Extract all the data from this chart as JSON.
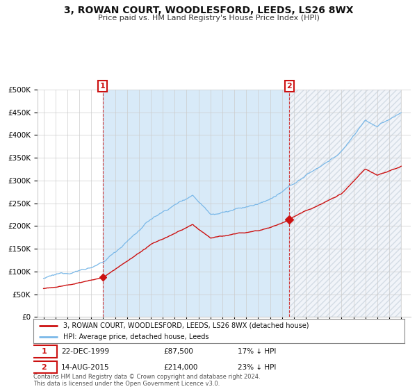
{
  "title": "3, ROWAN COURT, WOODLESFORD, LEEDS, LS26 8WX",
  "subtitle": "Price paid vs. HM Land Registry's House Price Index (HPI)",
  "ylim": [
    0,
    500000
  ],
  "yticks": [
    0,
    50000,
    100000,
    150000,
    200000,
    250000,
    300000,
    350000,
    400000,
    450000,
    500000
  ],
  "ytick_labels": [
    "£0",
    "£50K",
    "£100K",
    "£150K",
    "£200K",
    "£250K",
    "£300K",
    "£350K",
    "£400K",
    "£450K",
    "£500K"
  ],
  "hpi_color": "#7ab8e8",
  "hpi_fill_color": "#d8eaf8",
  "price_color": "#cc1111",
  "sale1_year": 1999.97,
  "sale1_price": 87500,
  "sale1_label": "1",
  "sale2_year": 2015.62,
  "sale2_price": 214000,
  "sale2_label": "2",
  "xmin": 1995,
  "xmax": 2025,
  "legend_property": "3, ROWAN COURT, WOODLESFORD, LEEDS, LS26 8WX (detached house)",
  "legend_hpi": "HPI: Average price, detached house, Leeds",
  "table_row1": [
    "1",
    "22-DEC-1999",
    "£87,500",
    "17% ↓ HPI"
  ],
  "table_row2": [
    "2",
    "14-AUG-2015",
    "£214,000",
    "23% ↓ HPI"
  ],
  "footnote": "Contains HM Land Registry data © Crown copyright and database right 2024.\nThis data is licensed under the Open Government Licence v3.0.",
  "background_color": "#ffffff",
  "grid_color": "#cccccc",
  "hatch_color": "#bbbbcc"
}
